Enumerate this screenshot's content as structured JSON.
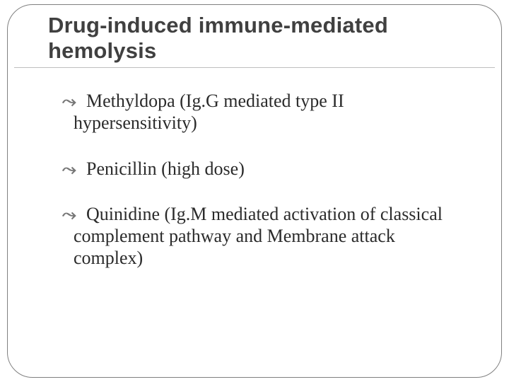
{
  "title": "Drug-induced immune-mediated hemolysis",
  "items": [
    {
      "first": "Methyldopa (Ig.G mediated type II",
      "cont": "hypersensitivity)"
    },
    {
      "first": "Penicillin (high dose)",
      "cont": ""
    },
    {
      "first": "Quinidine (Ig.M mediated activation of classical",
      "cont": "complement pathway and Membrane attack complex)"
    }
  ],
  "colors": {
    "title": "#404040",
    "body": "#2b2b2b",
    "bullet": "#777777",
    "rule": "#bfbfbf",
    "frame": "#808080",
    "background": "#ffffff"
  }
}
